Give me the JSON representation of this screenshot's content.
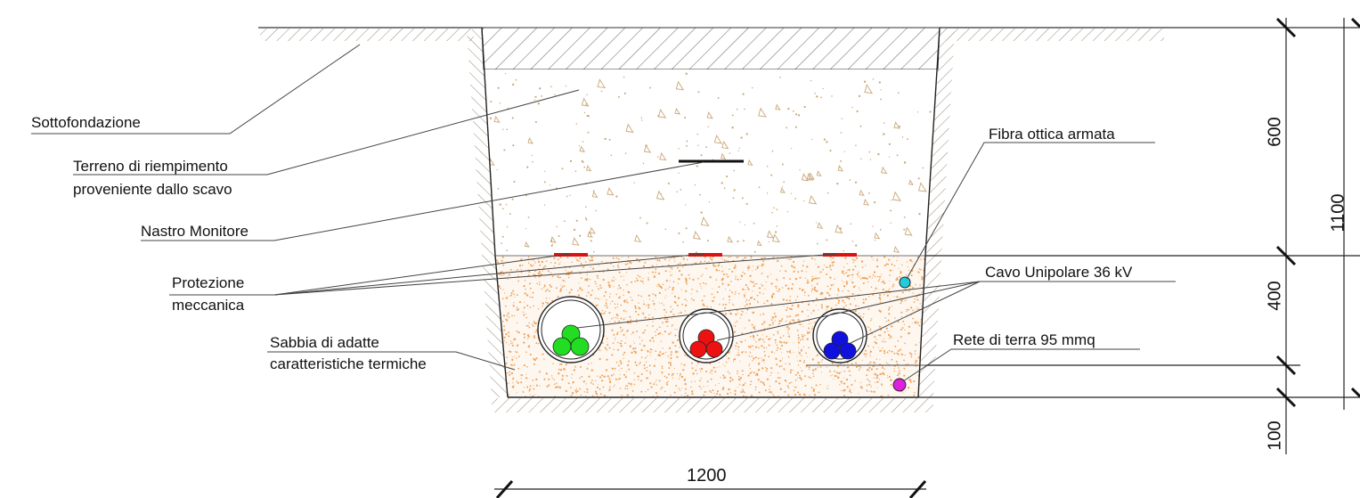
{
  "labels": {
    "sottofondazione": "Sottofondazione",
    "terreno_line1": "Terreno di riempimento",
    "terreno_line2": "proveniente dallo scavo",
    "nastro": "Nastro Monitore",
    "protezione_line1": "Protezione",
    "protezione_line2": "meccanica",
    "sabbia_line1": "Sabbia di adatte",
    "sabbia_line2": "caratteristiche termiche",
    "fibra": "Fibra ottica armata",
    "cavo": "Cavo Unipolare 36 kV",
    "rete": "Rete di terra 95 mmq"
  },
  "dimensions": {
    "d600": "600",
    "d400": "400",
    "d100": "100",
    "d1100": "1100",
    "d1200": "1200"
  },
  "colors": {
    "sand_dots": "#f0a35c",
    "fill_dots": "#c9a778",
    "hatch": "#9a8a7a",
    "tape": "#dd1111",
    "cable_group_1": "#22dd22",
    "cable_group_2": "#ee1111",
    "cable_group_3": "#1111dd",
    "fibre": "#22ccdd",
    "earth_wire": "#dd22dd"
  }
}
